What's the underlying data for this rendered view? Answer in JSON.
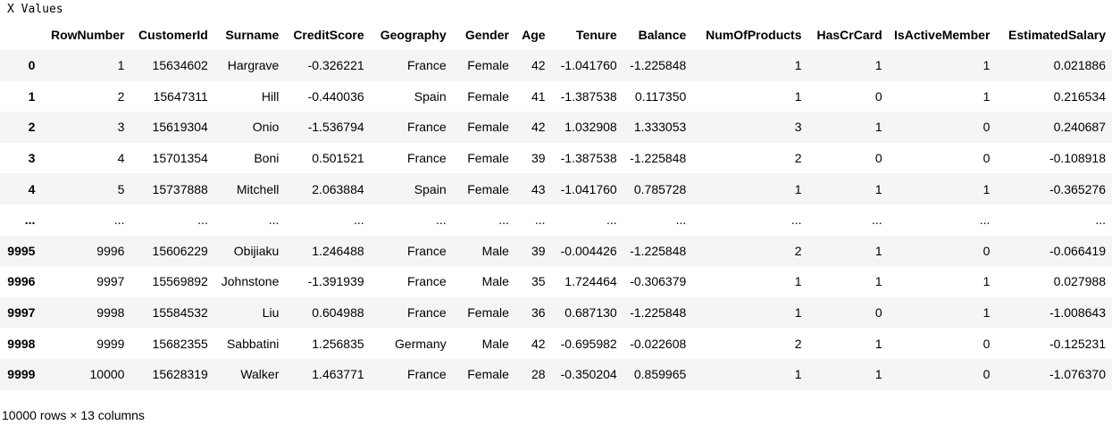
{
  "output": {
    "title": "X Values",
    "shape_text": "10000 rows × 13 columns"
  },
  "table": {
    "columns": [
      "",
      "RowNumber",
      "CustomerId",
      "Surname",
      "CreditScore",
      "Geography",
      "Gender",
      "Age",
      "Tenure",
      "Balance",
      "NumOfProducts",
      "HasCrCard",
      "IsActiveMember",
      "EstimatedSalary"
    ],
    "rows": [
      [
        "0",
        "1",
        "15634602",
        "Hargrave",
        "-0.326221",
        "France",
        "Female",
        "42",
        "-1.041760",
        "-1.225848",
        "1",
        "1",
        "1",
        "0.021886"
      ],
      [
        "1",
        "2",
        "15647311",
        "Hill",
        "-0.440036",
        "Spain",
        "Female",
        "41",
        "-1.387538",
        "0.117350",
        "1",
        "0",
        "1",
        "0.216534"
      ],
      [
        "2",
        "3",
        "15619304",
        "Onio",
        "-1.536794",
        "France",
        "Female",
        "42",
        "1.032908",
        "1.333053",
        "3",
        "1",
        "0",
        "0.240687"
      ],
      [
        "3",
        "4",
        "15701354",
        "Boni",
        "0.501521",
        "France",
        "Female",
        "39",
        "-1.387538",
        "-1.225848",
        "2",
        "0",
        "0",
        "-0.108918"
      ],
      [
        "4",
        "5",
        "15737888",
        "Mitchell",
        "2.063884",
        "Spain",
        "Female",
        "43",
        "-1.041760",
        "0.785728",
        "1",
        "1",
        "1",
        "-0.365276"
      ],
      [
        "...",
        "...",
        "...",
        "...",
        "...",
        "...",
        "...",
        "...",
        "...",
        "...",
        "...",
        "...",
        "...",
        "..."
      ],
      [
        "9995",
        "9996",
        "15606229",
        "Obijiaku",
        "1.246488",
        "France",
        "Male",
        "39",
        "-0.004426",
        "-1.225848",
        "2",
        "1",
        "0",
        "-0.066419"
      ],
      [
        "9996",
        "9997",
        "15569892",
        "Johnstone",
        "-1.391939",
        "France",
        "Male",
        "35",
        "1.724464",
        "-0.306379",
        "1",
        "1",
        "1",
        "0.027988"
      ],
      [
        "9997",
        "9998",
        "15584532",
        "Liu",
        "0.604988",
        "France",
        "Female",
        "36",
        "0.687130",
        "-1.225848",
        "1",
        "0",
        "1",
        "-1.008643"
      ],
      [
        "9998",
        "9999",
        "15682355",
        "Sabbatini",
        "1.256835",
        "Germany",
        "Male",
        "42",
        "-0.695982",
        "-0.022608",
        "2",
        "1",
        "0",
        "-0.125231"
      ],
      [
        "9999",
        "10000",
        "15628319",
        "Walker",
        "1.463771",
        "France",
        "Female",
        "28",
        "-0.350204",
        "0.859965",
        "1",
        "1",
        "0",
        "-1.076370"
      ]
    ]
  }
}
